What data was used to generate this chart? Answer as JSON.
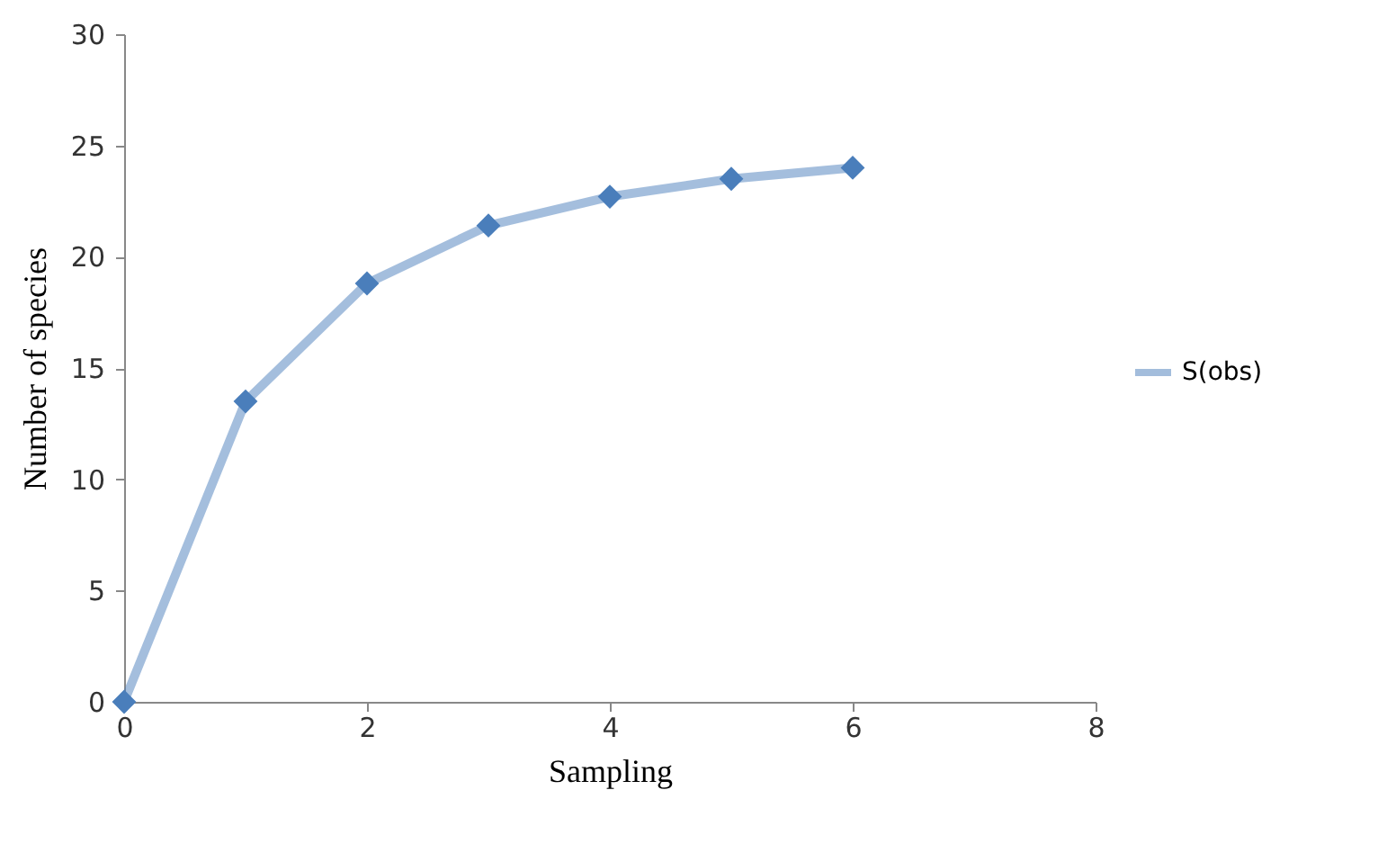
{
  "chart_data": {
    "type": "line",
    "xlabel": "Sampling",
    "ylabel": "Number of species",
    "x": [
      0,
      1,
      2,
      3,
      4,
      5,
      6
    ],
    "series": [
      {
        "name": "S(obs)",
        "color": "#4a7ebb",
        "values": [
          0,
          13.5,
          18.8,
          21.4,
          22.7,
          23.5,
          24.0
        ]
      }
    ],
    "xlim": [
      0,
      8
    ],
    "xticks": [
      0,
      2,
      4,
      6,
      8
    ],
    "ylim": [
      0,
      30
    ],
    "yticks": [
      0,
      5,
      10,
      15,
      20,
      25,
      30
    ],
    "grid": false,
    "legend": "right",
    "marker": "diamond",
    "line_style": "solid"
  }
}
